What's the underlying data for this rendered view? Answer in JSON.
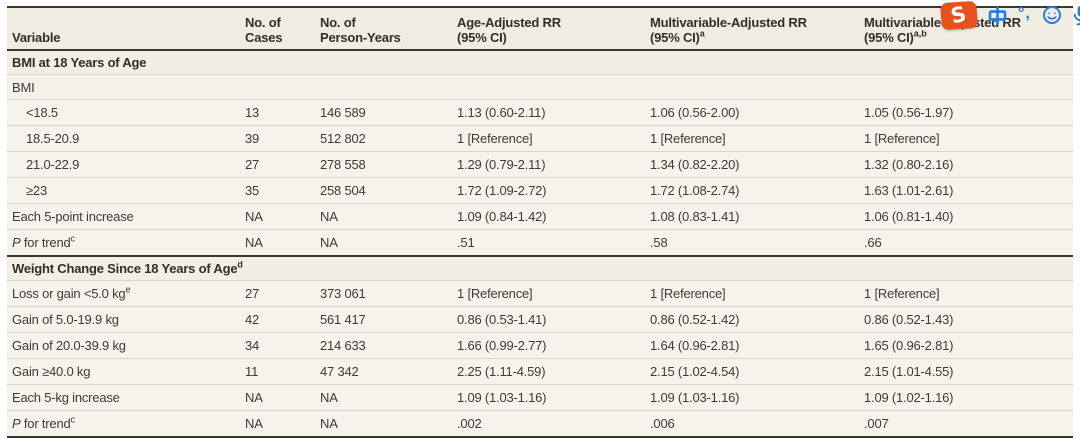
{
  "table": {
    "columns": [
      {
        "line1": "Variable",
        "line2": "",
        "sup": ""
      },
      {
        "line1": "No. of",
        "line2": "Cases",
        "sup": ""
      },
      {
        "line1": "No. of",
        "line2": "Person-Years",
        "sup": ""
      },
      {
        "line1": "Age-Adjusted RR",
        "line2": "(95% CI)",
        "sup": ""
      },
      {
        "line1": "Multivariable-Adjusted RR",
        "line2": "(95% CI)",
        "sup": "a"
      },
      {
        "line1": "Multivariable-Adjusted RR",
        "line2": "(95% CI)",
        "sup": "a,b"
      }
    ],
    "rows": [
      {
        "type": "section",
        "label": "BMI at 18 Years of Age",
        "sup": ""
      },
      {
        "type": "sub",
        "label": "BMI",
        "sup": "",
        "cells": [
          "",
          "",
          "",
          "",
          ""
        ]
      },
      {
        "type": "indent",
        "label": "<18.5",
        "sup": "",
        "cells": [
          "13",
          "146 589",
          "1.13 (0.60-2.11)",
          "1.06 (0.56-2.00)",
          "1.05 (0.56-1.97)"
        ]
      },
      {
        "type": "indent",
        "label": "18.5-20.9",
        "sup": "",
        "cells": [
          "39",
          "512 802",
          "1 [Reference]",
          "1 [Reference]",
          "1 [Reference]"
        ]
      },
      {
        "type": "indent",
        "label": "21.0-22.9",
        "sup": "",
        "cells": [
          "27",
          "278 558",
          "1.29 (0.79-2.11)",
          "1.34 (0.82-2.20)",
          "1.32 (0.80-2.16)"
        ]
      },
      {
        "type": "indent",
        "label": "≥23",
        "sup": "",
        "cells": [
          "35",
          "258 504",
          "1.72 (1.09-2.72)",
          "1.72 (1.08-2.74)",
          "1.63 (1.01-2.61)"
        ]
      },
      {
        "type": "data",
        "label": "Each 5-point increase",
        "sup": "",
        "cells": [
          "NA",
          "NA",
          "1.09 (0.84-1.42)",
          "1.08 (0.83-1.41)",
          "1.06 (0.81-1.40)"
        ]
      },
      {
        "type": "data",
        "label_italic": "P",
        "label": " for trend",
        "sup": "c",
        "cells": [
          "NA",
          "NA",
          ".51",
          ".58",
          ".66"
        ]
      },
      {
        "type": "section",
        "label": "Weight Change Since 18 Years of Age",
        "sup": "d",
        "rule_above": true
      },
      {
        "type": "data",
        "label": "Loss or gain <5.0 kg",
        "sup": "e",
        "cells": [
          "27",
          "373 061",
          "1 [Reference]",
          "1 [Reference]",
          "1 [Reference]"
        ]
      },
      {
        "type": "data",
        "label": "Gain of 5.0-19.9 kg",
        "sup": "",
        "cells": [
          "42",
          "561 417",
          "0.86 (0.53-1.41)",
          "0.86 (0.52-1.42)",
          "0.86 (0.52-1.43)"
        ]
      },
      {
        "type": "data",
        "label": "Gain of 20.0-39.9 kg",
        "sup": "",
        "cells": [
          "34",
          "214 633",
          "1.66 (0.99-2.77)",
          "1.64 (0.96-2.81)",
          "1.65 (0.96-2.81)"
        ]
      },
      {
        "type": "data",
        "label": "Gain ≥40.0 kg",
        "sup": "",
        "cells": [
          "11",
          "47 342",
          "2.25 (1.11-4.59)",
          "2.15 (1.02-4.54)",
          "2.15 (1.01-4.55)"
        ]
      },
      {
        "type": "data",
        "label": "Each 5-kg increase",
        "sup": "",
        "cells": [
          "NA",
          "NA",
          "1.09 (1.03-1.16)",
          "1.09 (1.03-1.16)",
          "1.09 (1.02-1.16)"
        ]
      },
      {
        "type": "data",
        "label_italic": "P",
        "label": " for trend",
        "sup": "c",
        "cells": [
          "NA",
          "NA",
          ".002",
          ".006",
          ".007"
        ]
      }
    ]
  },
  "ime_toolbar": {
    "logo_letter": "S",
    "logo_color": "#e8511d",
    "icon_color": "#2b7ad7",
    "punctuation_label": "°,",
    "icons": [
      "sogou-logo",
      "chinese-mode-icon",
      "punctuation-icon",
      "emoji-icon",
      "microphone-icon",
      "keyboard-icon"
    ]
  },
  "colors": {
    "table_background": "#f5f2eb",
    "header_background": "#efece2",
    "dark_rule": "#38362f",
    "row_separator": "#d8d4c7",
    "text": "#3c3b35"
  }
}
